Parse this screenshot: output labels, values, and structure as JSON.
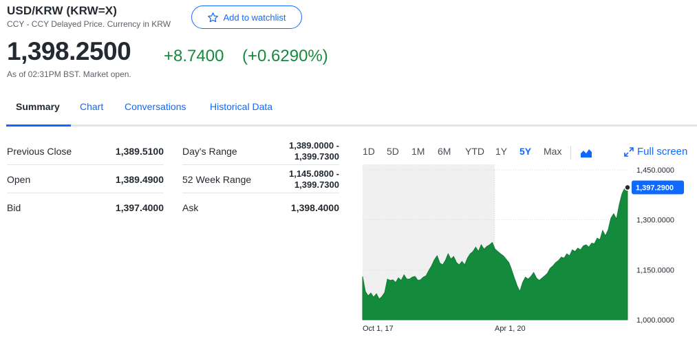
{
  "header": {
    "title": "USD/KRW (KRW=X)",
    "subtitle": "CCY - CCY Delayed Price. Currency in KRW",
    "watchlist_label": "Add to watchlist"
  },
  "quote": {
    "price": "1,398.2500",
    "change": "+8.7400",
    "change_percent": "(+0.6290%)",
    "as_of": "As of 02:31PM BST. Market open.",
    "positive_color": "#148a3c"
  },
  "tabs": [
    {
      "label": "Summary",
      "active": true
    },
    {
      "label": "Chart"
    },
    {
      "label": "Conversations"
    },
    {
      "label": "Historical Data"
    }
  ],
  "stats_left": [
    {
      "label": "Previous Close",
      "value": "1,389.5100"
    },
    {
      "label": "Open",
      "value": "1,389.4900"
    },
    {
      "label": "Bid",
      "value": "1,397.4000"
    }
  ],
  "stats_right": [
    {
      "label": "Day's Range",
      "value_line1": "1,389.0000 -",
      "value_line2": "1,399.7300"
    },
    {
      "label": "52 Week Range",
      "value_line1": "1,145.0800 -",
      "value_line2": "1,399.7300"
    },
    {
      "label": "Ask",
      "value": "1,398.4000"
    }
  ],
  "chart_controls": {
    "ranges": [
      "1D",
      "5D",
      "1M",
      "6M",
      "YTD",
      "1Y",
      "5Y",
      "Max"
    ],
    "active_range": "5Y",
    "chart_type_icon": "area-chart-icon",
    "fullscreen_label": "Full screen",
    "fullscreen_icon": "expand-arrows-icon"
  },
  "chart_data": {
    "type": "area",
    "series": [
      {
        "color": "#148a3c",
        "values": [
          1130,
          1085,
          1072,
          1080,
          1068,
          1078,
          1062,
          1070,
          1082,
          1122,
          1118,
          1120,
          1112,
          1126,
          1118,
          1135,
          1122,
          1122,
          1128,
          1130,
          1118,
          1120,
          1128,
          1132,
          1148,
          1162,
          1180,
          1192,
          1170,
          1165,
          1178,
          1198,
          1182,
          1190,
          1172,
          1165,
          1175,
          1165,
          1185,
          1198,
          1205,
          1218,
          1205,
          1225,
          1212,
          1220,
          1225,
          1232,
          1212,
          1205,
          1198,
          1192,
          1182,
          1172,
          1150,
          1125,
          1102,
          1085,
          1112,
          1128,
          1122,
          1130,
          1142,
          1125,
          1118,
          1125,
          1132,
          1140,
          1155,
          1162,
          1172,
          1178,
          1188,
          1185,
          1198,
          1192,
          1210,
          1205,
          1215,
          1210,
          1222,
          1225,
          1218,
          1230,
          1228,
          1245,
          1240,
          1268,
          1252,
          1270,
          1305,
          1318,
          1302,
          1345,
          1378,
          1395,
          1397.29
        ]
      }
    ],
    "x_ticks": [
      "Oct 1, 17",
      "Apr 1, 20"
    ],
    "y_ticks": [
      "1,450.0000",
      "1,300.0000",
      "1,150.0000",
      "1,000.0000"
    ],
    "ylim": [
      1000,
      1450
    ],
    "current_value_label": "1,397.2900",
    "shaded_region": "pre-market history (left portion)"
  }
}
